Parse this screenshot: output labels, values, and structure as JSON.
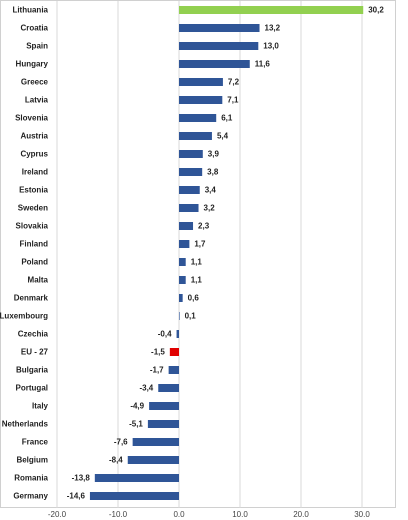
{
  "chart_data": {
    "type": "hbar",
    "categories": [
      "Lithuania",
      "Croatia",
      "Spain",
      "Hungary",
      "Greece",
      "Latvia",
      "Slovenia",
      "Austria",
      "Cyprus",
      "Ireland",
      "Estonia",
      "Sweden",
      "Slovakia",
      "Finland",
      "Poland",
      "Malta",
      "Denmark",
      "Luxembourg",
      "Czechia",
      "EU - 27",
      "Bulgaria",
      "Portugal",
      "Italy",
      "Netherlands",
      "France",
      "Belgium",
      "Romania",
      "Germany"
    ],
    "values": [
      30.2,
      13.2,
      13.0,
      11.6,
      7.2,
      7.1,
      6.1,
      5.4,
      3.9,
      3.8,
      3.4,
      3.2,
      2.3,
      1.7,
      1.1,
      1.1,
      0.6,
      0.1,
      -0.4,
      -1.5,
      -1.7,
      -3.4,
      -4.9,
      -5.1,
      -7.6,
      -8.4,
      -13.8,
      -14.6
    ],
    "value_labels": [
      "30,2",
      "13,2",
      "13,0",
      "11,6",
      "7,2",
      "7,1",
      "6,1",
      "5,4",
      "3,9",
      "3,8",
      "3,4",
      "3,2",
      "2,3",
      "1,7",
      "1,1",
      "1,1",
      "0,6",
      "0,1",
      "-0,4",
      "-1,5",
      "-1,7",
      "-3,4",
      "-4,9",
      "-5,1",
      "-7,6",
      "-8,4",
      "-13,8",
      "-14,6"
    ],
    "colors": [
      "#92d050",
      "#2f5597",
      "#2f5597",
      "#2f5597",
      "#2f5597",
      "#2f5597",
      "#2f5597",
      "#2f5597",
      "#2f5597",
      "#2f5597",
      "#2f5597",
      "#2f5597",
      "#2f5597",
      "#2f5597",
      "#2f5597",
      "#2f5597",
      "#2f5597",
      "#2f5597",
      "#2f5597",
      "#e00000",
      "#2f5597",
      "#2f5597",
      "#2f5597",
      "#2f5597",
      "#2f5597",
      "#2f5597",
      "#2f5597",
      "#2f5597"
    ],
    "xlim": [
      -20,
      35
    ],
    "xticks": [
      {
        "value": -20,
        "label": "-20.0"
      },
      {
        "value": -10,
        "label": "-10.0"
      },
      {
        "value": 0,
        "label": "0.0"
      },
      {
        "value": 10,
        "label": "10.0"
      },
      {
        "value": 20,
        "label": "20.0"
      },
      {
        "value": 30,
        "label": "30.0"
      }
    ],
    "grid": true
  }
}
